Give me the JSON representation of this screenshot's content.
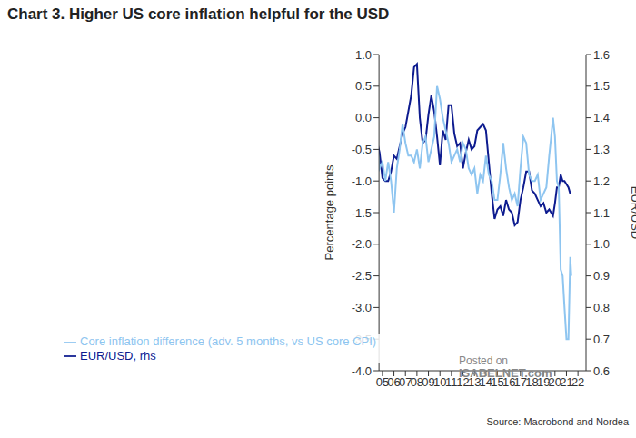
{
  "chart_data": {
    "type": "line",
    "title": "Chart 3. Higher US core inflation helpful for the USD",
    "source": "Source: Macrobond and Nordea",
    "annotations": [
      "Posted on",
      "ISABELNET.com"
    ],
    "y_label": "Percentage points",
    "y2_label": "EUR/USD",
    "x": [
      2005.0,
      2005.25,
      2005.5,
      2005.75,
      2006.0,
      2006.25,
      2006.5,
      2006.75,
      2007.0,
      2007.25,
      2007.5,
      2007.75,
      2008.0,
      2008.25,
      2008.5,
      2008.75,
      2009.0,
      2009.25,
      2009.5,
      2009.75,
      2010.0,
      2010.25,
      2010.5,
      2010.75,
      2011.0,
      2011.25,
      2011.5,
      2011.75,
      2012.0,
      2012.25,
      2012.5,
      2012.75,
      2013.0,
      2013.25,
      2013.5,
      2013.75,
      2014.0,
      2014.25,
      2014.5,
      2014.75,
      2015.0,
      2015.25,
      2015.5,
      2015.75,
      2016.0,
      2016.25,
      2016.5,
      2016.75,
      2017.0,
      2017.25,
      2017.5,
      2017.75,
      2018.0,
      2018.25,
      2018.5,
      2018.75,
      2019.0,
      2019.25,
      2019.5,
      2019.75,
      2020.0,
      2020.17,
      2020.33,
      2020.5,
      2020.67,
      2020.83,
      2021.0,
      2021.17,
      2021.33,
      2021.5,
      2021.67,
      2021.83,
      2021.92
    ],
    "xlim": [
      2005.2,
      2023.2
    ],
    "xticks": [
      {
        "value": 2005.5,
        "label": "05"
      },
      {
        "value": 2006.5,
        "label": "06"
      },
      {
        "value": 2007.5,
        "label": "07"
      },
      {
        "value": 2008.5,
        "label": "08"
      },
      {
        "value": 2009.5,
        "label": "09"
      },
      {
        "value": 2010.5,
        "label": "10"
      },
      {
        "value": 2011.5,
        "label": "11"
      },
      {
        "value": 2012.5,
        "label": "12"
      },
      {
        "value": 2013.5,
        "label": "13"
      },
      {
        "value": 2014.5,
        "label": "14"
      },
      {
        "value": 2015.5,
        "label": "15"
      },
      {
        "value": 2016.5,
        "label": "16"
      },
      {
        "value": 2017.5,
        "label": "17"
      },
      {
        "value": 2018.5,
        "label": "18"
      },
      {
        "value": 2019.5,
        "label": "19"
      },
      {
        "value": 2020.5,
        "label": "20"
      },
      {
        "value": 2021.5,
        "label": "21"
      },
      {
        "value": 2022.5,
        "label": "22"
      }
    ],
    "ylim": [
      -4.0,
      1.0
    ],
    "yticks": [
      {
        "value": 1.0,
        "label": "1.0"
      },
      0.5,
      {
        "value": 0.0,
        "label": "0.0"
      },
      -0.5,
      {
        "value": -1.0,
        "label": "-1.0"
      },
      -1.5,
      {
        "value": -2.0,
        "label": "-2.0"
      },
      -2.5,
      {
        "value": -3.0,
        "label": "-3.0"
      },
      -3.5,
      {
        "value": -4.0,
        "label": "-4.0"
      }
    ],
    "y2lim": [
      0.6,
      1.6
    ],
    "y2ticks": [
      0.6,
      0.7,
      0.8,
      0.9,
      {
        "value": 1.0,
        "label": "1.0"
      },
      1.1,
      1.2,
      1.3,
      1.4,
      1.5,
      1.6
    ],
    "grid": false,
    "legend": "lower left",
    "series": [
      {
        "name": "EUR/USD, rhs",
        "color": "#0d1b8f",
        "axis": "y2",
        "values": [
          1.33,
          1.29,
          1.21,
          1.2,
          1.2,
          1.23,
          1.28,
          1.27,
          1.31,
          1.35,
          1.37,
          1.42,
          1.47,
          1.56,
          1.57,
          1.4,
          1.32,
          1.33,
          1.41,
          1.47,
          1.42,
          1.34,
          1.25,
          1.36,
          1.33,
          1.44,
          1.44,
          1.35,
          1.31,
          1.32,
          1.24,
          1.29,
          1.33,
          1.3,
          1.31,
          1.36,
          1.37,
          1.38,
          1.36,
          1.26,
          1.16,
          1.08,
          1.11,
          1.12,
          1.09,
          1.14,
          1.11,
          1.1,
          1.06,
          1.07,
          1.14,
          1.18,
          1.23,
          1.23,
          1.17,
          1.16,
          1.14,
          1.12,
          1.13,
          1.1,
          1.11,
          1.1,
          1.09,
          1.13,
          1.18,
          1.18,
          1.22,
          1.2,
          1.2,
          1.19,
          1.18,
          1.16,
          null
        ]
      },
      {
        "name": "Core inflation difference (adv. 5 months, vs US core CPI)",
        "color": "#8ec5f0",
        "values": [
          -0.3,
          -0.8,
          -0.7,
          -1.0,
          -0.7,
          -1.0,
          -1.5,
          -0.8,
          -0.5,
          -0.1,
          -0.4,
          -0.6,
          -0.6,
          -0.7,
          -0.5,
          -0.8,
          -0.4,
          -0.3,
          -0.7,
          -0.5,
          -0.3,
          0.5,
          0.3,
          0.0,
          -0.2,
          -0.4,
          -0.7,
          -0.6,
          -0.5,
          -0.7,
          -0.4,
          -0.5,
          -0.8,
          -0.9,
          -0.8,
          -1.2,
          -0.9,
          -1.0,
          -0.6,
          -0.9,
          -1.0,
          -1.3,
          -1.3,
          -0.9,
          -0.4,
          -0.8,
          -1.1,
          -1.3,
          -1.2,
          -1.4,
          -0.8,
          -0.3,
          -0.4,
          -0.9,
          -1.0,
          -1.0,
          -0.9,
          -1.3,
          -1.2,
          -1.1,
          -0.6,
          -0.3,
          0.0,
          -0.3,
          -1.0,
          -1.1,
          -2.4,
          -2.5,
          -3.0,
          -3.5,
          -3.5,
          -2.2,
          -2.5
        ]
      }
    ]
  }
}
